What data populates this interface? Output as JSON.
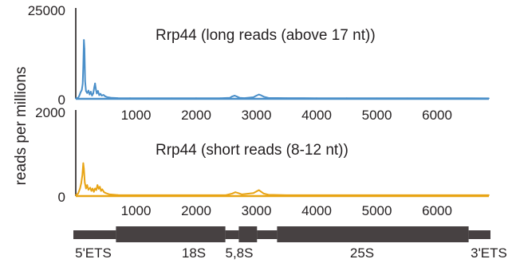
{
  "chart_data": [
    {
      "type": "line",
      "title": "Rrp44 (long reads (above 17 nt))",
      "ylabel": "reads per millions",
      "ylim": [
        0,
        25000
      ],
      "y_tick_labels": [
        "0",
        "25000"
      ],
      "xlim": [
        0,
        6860
      ],
      "x_tick_labels": [
        "1000",
        "2000",
        "3000",
        "4000",
        "5000",
        "6000"
      ],
      "x_ticks": [
        1000,
        2000,
        3000,
        4000,
        5000,
        6000
      ],
      "color": "#4a8fc9",
      "points": [
        [
          0,
          120
        ],
        [
          40,
          300
        ],
        [
          60,
          900
        ],
        [
          80,
          1800
        ],
        [
          100,
          2500
        ],
        [
          115,
          4200
        ],
        [
          125,
          9000
        ],
        [
          135,
          16500
        ],
        [
          145,
          14000
        ],
        [
          155,
          5000
        ],
        [
          170,
          2200
        ],
        [
          190,
          1600
        ],
        [
          210,
          2300
        ],
        [
          230,
          1200
        ],
        [
          250,
          2000
        ],
        [
          270,
          900
        ],
        [
          290,
          1500
        ],
        [
          310,
          3500
        ],
        [
          320,
          4300
        ],
        [
          335,
          2600
        ],
        [
          350,
          1500
        ],
        [
          370,
          2200
        ],
        [
          390,
          1000
        ],
        [
          410,
          1400
        ],
        [
          430,
          900
        ],
        [
          460,
          1100
        ],
        [
          490,
          700
        ],
        [
          520,
          500
        ],
        [
          560,
          380
        ],
        [
          600,
          260
        ],
        [
          700,
          200
        ],
        [
          900,
          180
        ],
        [
          1200,
          160
        ],
        [
          1600,
          160
        ],
        [
          2000,
          170
        ],
        [
          2400,
          180
        ],
        [
          2560,
          300
        ],
        [
          2600,
          700
        ],
        [
          2640,
          900
        ],
        [
          2680,
          600
        ],
        [
          2720,
          300
        ],
        [
          2800,
          200
        ],
        [
          2950,
          450
        ],
        [
          3000,
          900
        ],
        [
          3040,
          1200
        ],
        [
          3080,
          950
        ],
        [
          3120,
          600
        ],
        [
          3200,
          250
        ],
        [
          3500,
          200
        ],
        [
          4000,
          180
        ],
        [
          4500,
          170
        ],
        [
          5000,
          160
        ],
        [
          5500,
          160
        ],
        [
          6000,
          150
        ],
        [
          6500,
          150
        ],
        [
          6860,
          140
        ]
      ]
    },
    {
      "type": "line",
      "title": "Rrp44 (short reads (8-12 nt))",
      "ylabel": "reads per millions",
      "ylim": [
        0,
        2000
      ],
      "y_tick_labels": [
        "0",
        "2000"
      ],
      "xlim": [
        0,
        6860
      ],
      "x_tick_labels": [
        "1000",
        "2000",
        "3000",
        "4000",
        "5000",
        "6000"
      ],
      "x_ticks": [
        1000,
        2000,
        3000,
        4000,
        5000,
        6000
      ],
      "color": "#e8a415",
      "points": [
        [
          0,
          20
        ],
        [
          40,
          60
        ],
        [
          70,
          180
        ],
        [
          90,
          300
        ],
        [
          110,
          500
        ],
        [
          125,
          780
        ],
        [
          135,
          650
        ],
        [
          150,
          320
        ],
        [
          170,
          180
        ],
        [
          190,
          260
        ],
        [
          210,
          150
        ],
        [
          240,
          200
        ],
        [
          260,
          120
        ],
        [
          280,
          180
        ],
        [
          300,
          100
        ],
        [
          320,
          180
        ],
        [
          340,
          140
        ],
        [
          360,
          260
        ],
        [
          380,
          170
        ],
        [
          400,
          220
        ],
        [
          420,
          120
        ],
        [
          440,
          160
        ],
        [
          470,
          90
        ],
        [
          500,
          70
        ],
        [
          560,
          40
        ],
        [
          700,
          25
        ],
        [
          1000,
          20
        ],
        [
          1500,
          20
        ],
        [
          2000,
          20
        ],
        [
          2500,
          25
        ],
        [
          2600,
          60
        ],
        [
          2650,
          90
        ],
        [
          2700,
          70
        ],
        [
          2760,
          40
        ],
        [
          2950,
          70
        ],
        [
          3000,
          110
        ],
        [
          3040,
          140
        ],
        [
          3080,
          100
        ],
        [
          3120,
          60
        ],
        [
          3200,
          30
        ],
        [
          3500,
          20
        ],
        [
          4000,
          20
        ],
        [
          5000,
          20
        ],
        [
          6000,
          20
        ],
        [
          6860,
          20
        ]
      ]
    }
  ],
  "rrna_map": {
    "regions": [
      {
        "label": "5'ETS",
        "start": 0,
        "end": 700,
        "tall": false
      },
      {
        "label": "18S",
        "start": 700,
        "end": 2500,
        "tall": true
      },
      {
        "label": "",
        "start": 2500,
        "end": 2720,
        "tall": false
      },
      {
        "label": "5,8S",
        "start": 2720,
        "end": 3020,
        "tall": true
      },
      {
        "label": "",
        "start": 3020,
        "end": 3350,
        "tall": false
      },
      {
        "label": "25S",
        "start": 3350,
        "end": 6500,
        "tall": true
      },
      {
        "label": "3'ETS",
        "start": 6500,
        "end": 6860,
        "tall": false
      }
    ],
    "color": "#474142"
  }
}
